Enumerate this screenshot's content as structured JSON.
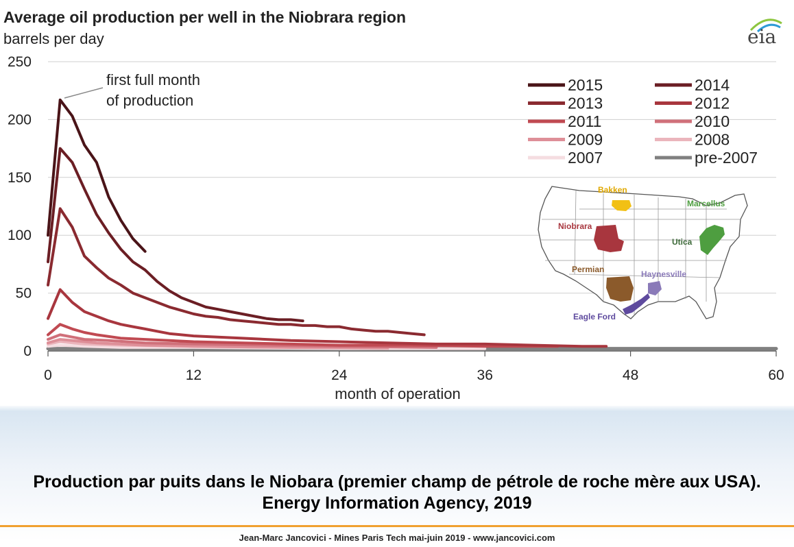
{
  "chart_data": {
    "type": "line",
    "title": "Average oil production per well in the Niobrara region",
    "subtitle": "barrels per day",
    "xlabel": "month of operation",
    "ylabel": "",
    "xlim": [
      0,
      60
    ],
    "ylim": [
      0,
      250
    ],
    "xticks": [
      0,
      12,
      24,
      36,
      48,
      60
    ],
    "yticks": [
      0,
      50,
      100,
      150,
      200,
      250
    ],
    "grid": "horizontal",
    "legend_position": "top-right",
    "annotation": "first full month\nof production",
    "series": [
      {
        "name": "2015",
        "color": "#4a1418",
        "x": [
          0,
          1,
          2,
          3,
          4,
          5,
          6,
          7,
          8
        ],
        "y": [
          100,
          217,
          203,
          178,
          163,
          133,
          113,
          97,
          86
        ]
      },
      {
        "name": "2014",
        "color": "#6b1e24",
        "x": [
          0,
          1,
          2,
          3,
          4,
          5,
          6,
          7,
          8,
          9,
          10,
          11,
          12,
          13,
          14,
          15,
          16,
          17,
          18,
          19,
          20,
          21
        ],
        "y": [
          77,
          175,
          163,
          140,
          118,
          102,
          88,
          77,
          70,
          60,
          52,
          46,
          42,
          38,
          36,
          34,
          32,
          30,
          28,
          27,
          27,
          26
        ]
      },
      {
        "name": "2013",
        "color": "#8a2a30",
        "x": [
          0,
          1,
          2,
          3,
          4,
          5,
          6,
          7,
          8,
          9,
          10,
          11,
          12,
          13,
          14,
          15,
          16,
          17,
          18,
          19,
          20,
          21,
          22,
          23,
          24,
          25,
          26,
          27,
          28,
          29,
          30,
          31
        ],
        "y": [
          57,
          123,
          107,
          82,
          72,
          63,
          57,
          50,
          46,
          42,
          38,
          35,
          32,
          30,
          29,
          27,
          26,
          25,
          24,
          23,
          23,
          22,
          22,
          21,
          21,
          19,
          18,
          17,
          17,
          16,
          15,
          14
        ]
      },
      {
        "name": "2012",
        "color": "#a8363e",
        "x": [
          0,
          1,
          2,
          3,
          4,
          5,
          6,
          7,
          8,
          9,
          10,
          12,
          14,
          16,
          18,
          20,
          24,
          28,
          32,
          36,
          40,
          44,
          46
        ],
        "y": [
          28,
          53,
          42,
          34,
          30,
          26,
          23,
          21,
          19,
          17,
          15,
          13,
          12,
          11,
          10,
          9,
          8,
          7,
          6,
          6,
          5,
          4,
          4
        ]
      },
      {
        "name": "2011",
        "color": "#c04a52",
        "x": [
          0,
          1,
          2,
          3,
          4,
          6,
          8,
          10,
          12,
          16,
          20,
          24,
          30,
          36,
          42
        ],
        "y": [
          14,
          23,
          19,
          16,
          14,
          11,
          10,
          9,
          8,
          7,
          6,
          5,
          5,
          4,
          4
        ]
      },
      {
        "name": "2010",
        "color": "#d0707a",
        "x": [
          0,
          1,
          2,
          3,
          5,
          8,
          12,
          18,
          24,
          32
        ],
        "y": [
          10,
          14,
          12,
          10,
          9,
          7,
          6,
          5,
          4,
          3
        ]
      },
      {
        "name": "2009",
        "color": "#de8f98",
        "x": [
          0,
          1,
          2,
          4,
          8,
          12,
          20,
          28
        ],
        "y": [
          7,
          10,
          9,
          7,
          5,
          4,
          3,
          3
        ]
      },
      {
        "name": "2008",
        "color": "#ebb5bc",
        "x": [
          0,
          1,
          3,
          6,
          12,
          20,
          28
        ],
        "y": [
          6,
          8,
          6,
          5,
          4,
          3,
          2
        ]
      },
      {
        "name": "2007",
        "color": "#f5dde1",
        "x": [
          0,
          1,
          3,
          6,
          12,
          24,
          36
        ],
        "y": [
          4,
          5,
          4,
          3,
          3,
          2,
          2
        ]
      },
      {
        "name": "pre-2007",
        "color": "#808080",
        "x": [
          0,
          60
        ],
        "y": [
          2,
          2
        ]
      }
    ]
  },
  "map": {
    "labels": [
      "Bakken",
      "Marcellus",
      "Niobrara",
      "Utica",
      "Permian",
      "Haynesville",
      "Eagle Ford"
    ],
    "colors": {
      "bakken": "#f2c014",
      "marcellus": "#4e9e40",
      "niobrara": "#a8363e",
      "permian": "#8b5a2b",
      "haynesville": "#8a7ab8",
      "eagleford": "#5e4a9e"
    }
  },
  "logo": "eia",
  "caption": "Production par puits dans le Niobara (premier champ de pétrole de roche mère aux USA). Energy Information Agency, 2019",
  "footer": "Jean-Marc Jancovici - Mines Paris Tech mai-juin 2019 - www.jancovici.com"
}
